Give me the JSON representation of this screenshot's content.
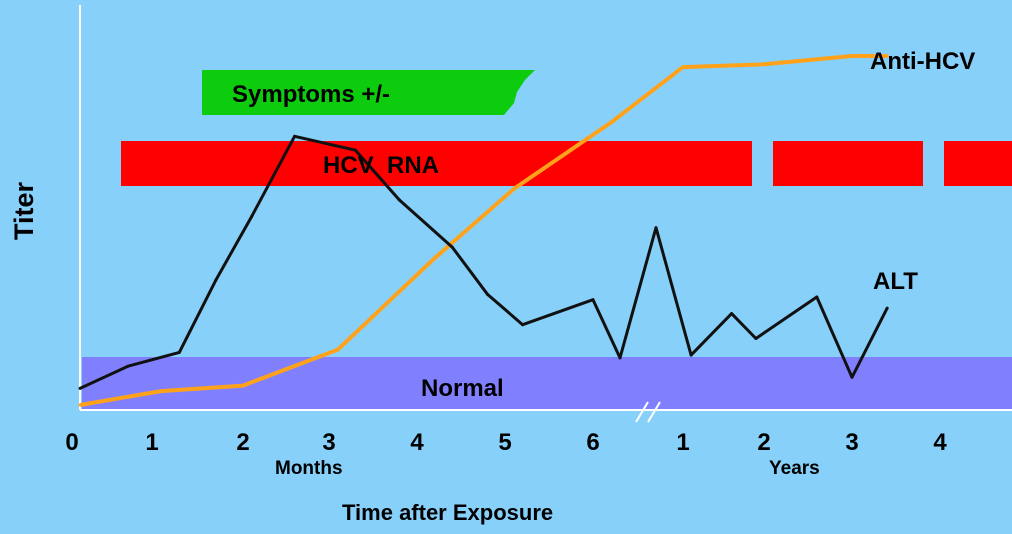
{
  "chart_data": {
    "type": "line",
    "ylabel": "Titer",
    "xlabel": "Time after Exposure",
    "x_segments": [
      {
        "unit_label": "Months",
        "ticks": [
          "0",
          "1",
          "2",
          "3",
          "4",
          "5",
          "6"
        ]
      },
      {
        "unit_label": "Years",
        "ticks": [
          "1",
          "2",
          "3",
          "4"
        ]
      }
    ],
    "axis_break": "//",
    "bands": [
      {
        "label": "Symptoms +/-",
        "color": "#0dcc0d",
        "from": 1.5,
        "to": 5.2
      },
      {
        "label": "HCV  RNA",
        "color": "#ff0000",
        "segments": [
          [
            0.55,
            7.6
          ],
          [
            7.8,
            9.8
          ],
          [
            10.0,
            10.8
          ]
        ]
      },
      {
        "label": "Normal",
        "color": "#8080ff"
      }
    ],
    "y_scale": "relative titer, 0-100 (no tick labels shown)",
    "series": [
      {
        "name": "ALT",
        "color": "#111111",
        "x": [
          0.1,
          0.7,
          1.3,
          1.7,
          2.1,
          2.6,
          3.3,
          3.8,
          4.4,
          4.8,
          5.2,
          6.0,
          6.3,
          6.7,
          7.1,
          7.6,
          7.9,
          8.6,
          9.0,
          9.4
        ],
        "y": [
          6,
          14,
          19,
          45,
          68,
          97,
          92,
          74,
          57,
          40,
          29,
          38,
          17,
          64,
          18,
          33,
          24,
          39,
          10,
          35
        ]
      },
      {
        "name": "Anti-HCV",
        "color": "#ffa21a",
        "x": [
          0.1,
          1.1,
          2.0,
          3.1,
          4.2,
          5.1,
          6.2,
          7.0,
          8.0,
          9.0,
          9.4
        ],
        "y": [
          0,
          5,
          7,
          20,
          53,
          78,
          102,
          122,
          123,
          126,
          126
        ]
      }
    ]
  }
}
